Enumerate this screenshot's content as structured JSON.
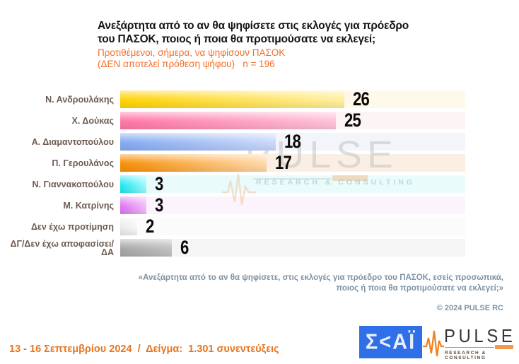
{
  "header": {
    "title_line1": "Ανεξάρτητα από το αν θα ψηφίσετε στις εκλογές για πρόεδρο",
    "title_line2": "του ΠΑΣΟΚ, ποιος ή ποια θα προτιμούσατε να εκλεγεί;",
    "subtitle_line1": "Προτιθέμενοι, σήμερα, να ψηφίσουν ΠΑΣΟΚ",
    "subtitle_line2": "(ΔΕΝ αποτελεί πρόθεση ψήφου)   n = 196"
  },
  "chart_data": {
    "type": "bar",
    "orientation": "horizontal",
    "title": "Ανεξάρτητα από το αν θα ψηφίσετε στις εκλογές για πρόεδρο του ΠΑΣΟΚ, ποιος ή ποια θα προτιμούσατε να εκλεγεί;",
    "subtitle": "Προτιθέμενοι, σήμερα, να ψηφίσουν ΠΑΣΟΚ (ΔΕΝ αποτελεί πρόθεση ψήφου)",
    "sample_note": "n = 196",
    "categories": [
      "Ν. Ανδρουλάκης",
      "Χ. Δούκας",
      "Α. Διαμαντοπούλου",
      "Π. Γερουλάνος",
      "Ν. Γιαννακοπούλου",
      "Μ. Κατρίνης",
      "Δεν έχω προτίμηση",
      "ΔΓ/Δεν έχω αποφασίσει/ΔΑ"
    ],
    "values": [
      26,
      25,
      18,
      17,
      3,
      3,
      2,
      6
    ],
    "xlim": [
      0,
      40
    ],
    "grid": false,
    "legend": false,
    "bar_colors": [
      "#FFD303",
      "#FF76A6",
      "#85AAF2",
      "#F88E06",
      "#1FE6F2",
      "#DD74EE",
      "#E9E9E9",
      "#A7A7A7"
    ],
    "bar_colors_light": [
      "#FFEFA0",
      "#FFC3D9",
      "#CBD9FA",
      "#FFD9A8",
      "#9FFBFF",
      "#F3BCFA",
      "#F7F7F7",
      "#C2C2C2"
    ],
    "row_tints": [
      "#FEF9E8",
      "#FDF4F6",
      "#F3F5FB",
      "#FBEFE3",
      "#EAFBFC",
      "#FCF4FC",
      "#FBFBFB",
      "#F5F5F5"
    ]
  },
  "watermark": {
    "word": "PULSE",
    "tagline": "RESEARCH & CONSULTING"
  },
  "footer": {
    "quote_line1": "«Ανεξάρτητα από το αν θα ψηφίσετε, στις εκλογές για πρόεδρο του ΠΑΣΟΚ, εσείς προσωπικά,",
    "quote_line2": "ποιος ή ποια θα προτιμούσατε να εκλεγεί;»",
    "copyright": "© 2024 PULSE RC",
    "survey_info": "13 - 16 Σεπτεμβρίου 2024  /  Δείγμα:  1.301 συνεντεύξεις"
  },
  "logos": {
    "skai_text": "Σ<ΑΪ",
    "pulse_text": "PULSE",
    "pulse_tagline": "RESEARCH & CONSULTING"
  },
  "colors": {
    "accent_orange": "#F26F28",
    "date_orange": "#E87520",
    "label_brown": "#6F5B52",
    "quote_slate": "#7E92A2",
    "skai_blue": "#2F6FE8",
    "value_black": "#0A0A0A",
    "title_black": "#141414"
  }
}
